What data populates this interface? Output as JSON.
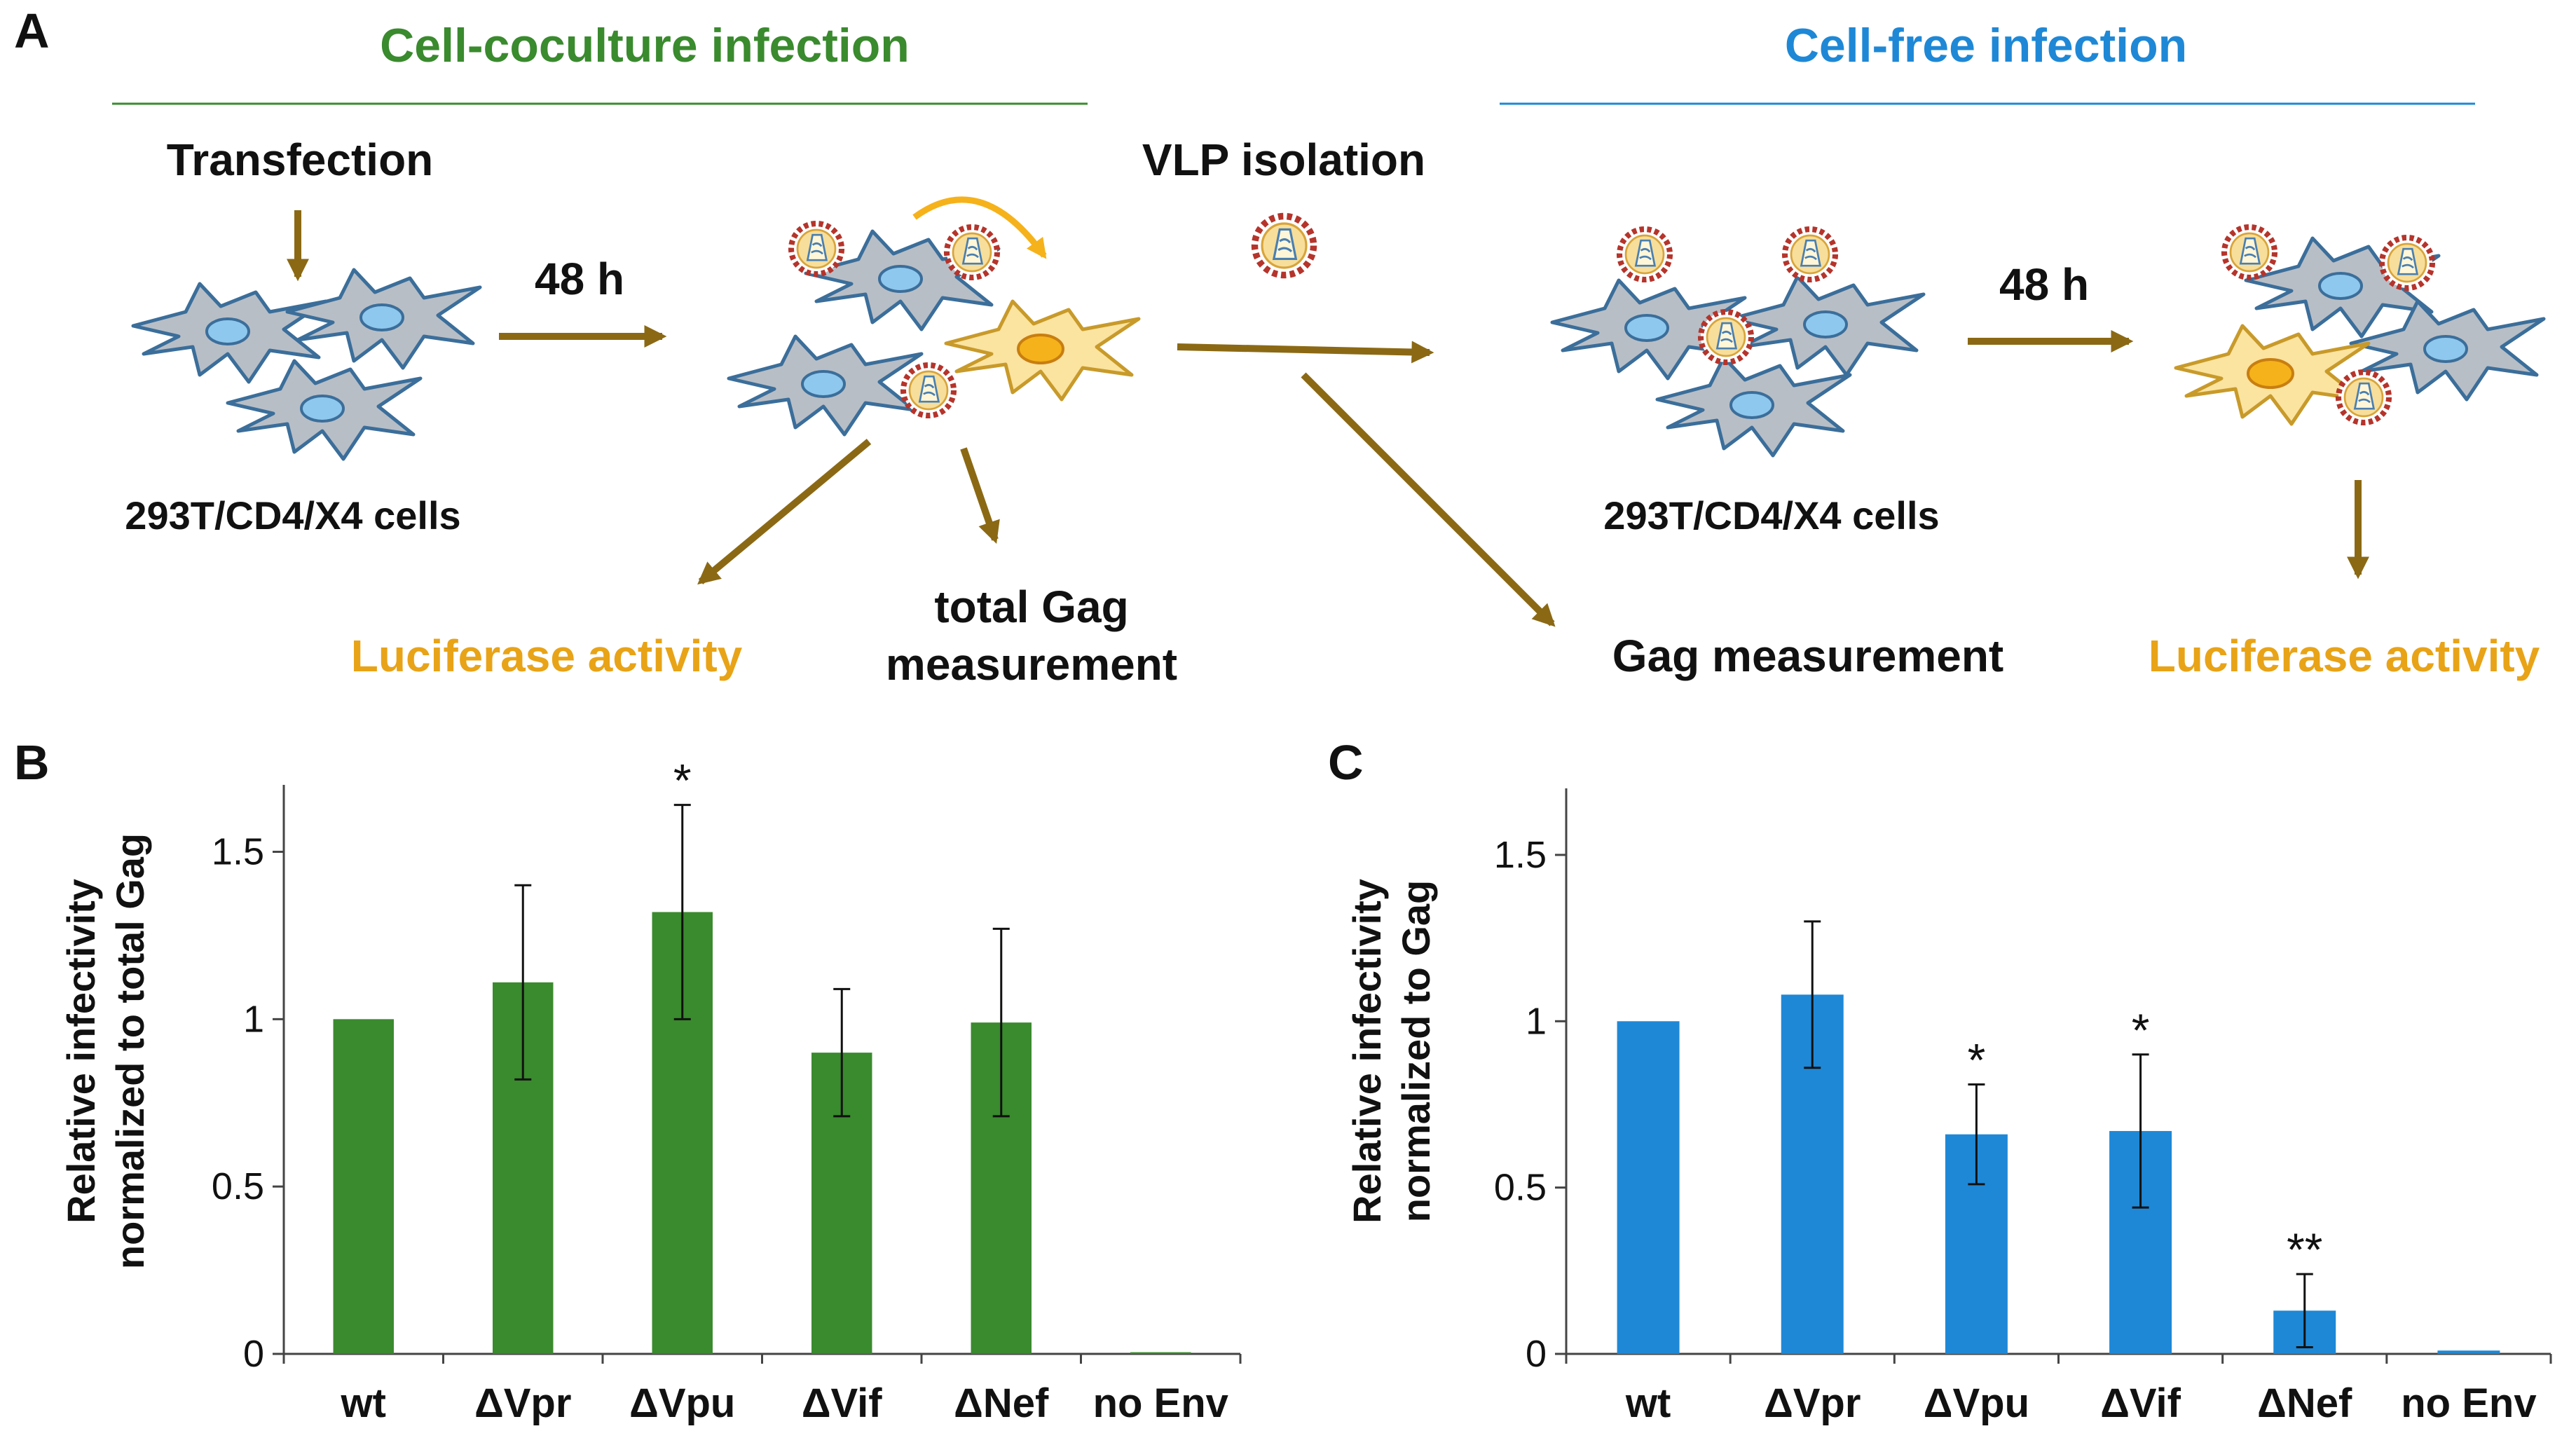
{
  "panel_a": {
    "letter": "A",
    "cell_coculture_title": "Cell-coculture infection",
    "cell_free_title": "Cell-free infection",
    "transfection": "Transfection",
    "time_48h_left": "48 h",
    "vlp_isolation": "VLP isolation",
    "time_48h_right": "48 h",
    "cells_left": "293T/CD4/X4 cells",
    "cells_right": "293T/CD4/X4 cells",
    "luciferase_left": "Luciferase activity",
    "total_gag_line1": "total Gag",
    "total_gag_line2": "measurement",
    "gag_measurement": "Gag measurement",
    "luciferase_right": "Luciferase activity",
    "colors": {
      "green": "#3A8A2E",
      "blue": "#1E88D6",
      "arrow": "#8B6914",
      "luciferase": "#E8A317",
      "cell_gray": "#B8BEC6",
      "cell_outline": "#3B6E9A",
      "nucleus": "#8EC8EE",
      "infected_cell": "#FBE3A0",
      "infected_nucleus": "#F6B21A",
      "virus_ring": "#B5342B"
    }
  },
  "chart_data": [
    {
      "panel": "B",
      "type": "bar",
      "ylabel_line1": "Relative infectivity",
      "ylabel_line2": "normalized to total Gag",
      "categories": [
        "wt",
        "ΔVpr",
        "ΔVpu",
        "ΔVif",
        "ΔNef",
        "no Env"
      ],
      "values": [
        1.0,
        1.11,
        1.32,
        0.9,
        0.99,
        0.005
      ],
      "errors": [
        0.0,
        0.29,
        0.32,
        0.19,
        0.28,
        0.0
      ],
      "significance": [
        "",
        "",
        "*",
        "",
        "",
        ""
      ],
      "ylim": [
        0,
        1.7
      ],
      "yticks": [
        "0",
        "0.5",
        "1",
        "1.5"
      ],
      "ytick_values": [
        0,
        0.5,
        1,
        1.5
      ],
      "color": "#3A8A2E"
    },
    {
      "panel": "C",
      "type": "bar",
      "ylabel_line1": "Relative infectivity",
      "ylabel_line2": "normalized to Gag",
      "categories": [
        "wt",
        "ΔVpr",
        "ΔVpu",
        "ΔVif",
        "ΔNef",
        "no Env"
      ],
      "values": [
        1.0,
        1.08,
        0.66,
        0.67,
        0.13,
        0.01
      ],
      "errors": [
        0.0,
        0.22,
        0.15,
        0.23,
        0.11,
        0.0
      ],
      "significance": [
        "",
        "",
        "*",
        "*",
        "**",
        ""
      ],
      "ylim": [
        0,
        1.7
      ],
      "yticks": [
        "0",
        "0.5",
        "1",
        "1.5"
      ],
      "ytick_values": [
        0,
        0.5,
        1,
        1.5
      ],
      "color": "#1E88D6"
    }
  ]
}
